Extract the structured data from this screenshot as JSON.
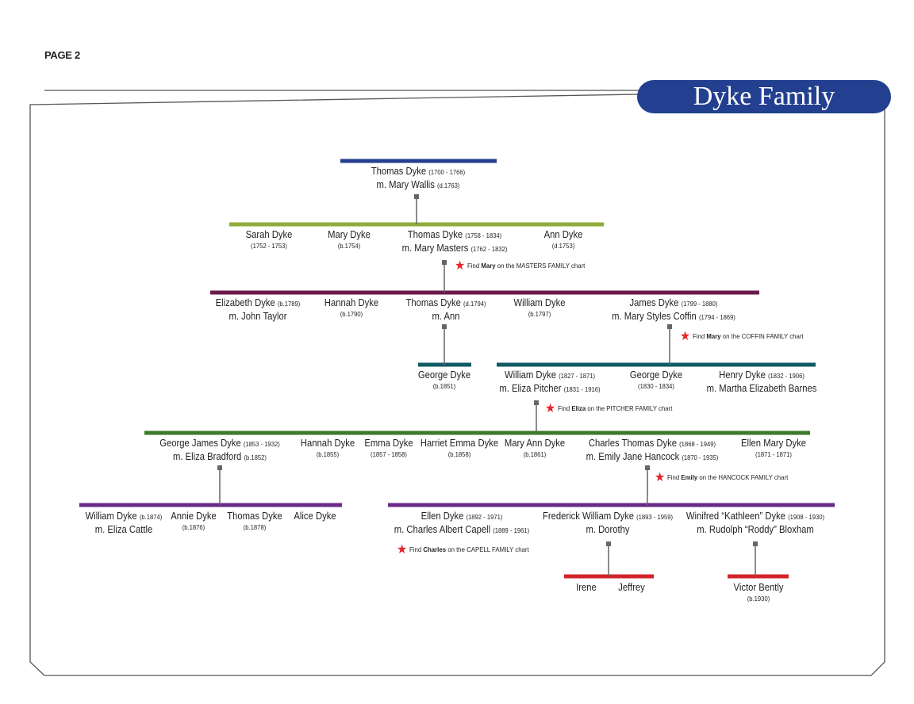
{
  "page_label": "PAGE 2",
  "title": "Dyke Family",
  "colors": {
    "title_bg": "#233f8f",
    "gen0": "#233f8f",
    "gen1": "#8fac3a",
    "gen2": "#6b1b4b",
    "gen3": "#0f5a64",
    "gen4": "#3d7a2a",
    "gen5": "#6a2a86",
    "gen6": "#d2232a",
    "star": "#e8232a"
  },
  "g0": [
    {
      "name": "Thomas Dyke",
      "dates": "(1700 - 1766)",
      "spouse": "m. Mary Wallis",
      "spouse_dates": "(d.1763)"
    }
  ],
  "g1": [
    {
      "name": "Sarah Dyke",
      "sub": "(1752 - 1753)"
    },
    {
      "name": "Mary Dyke",
      "sub": "(b.1754)"
    },
    {
      "name": "Thomas Dyke",
      "dates": "(1758 - 1834)",
      "spouse": "m. Mary Masters",
      "spouse_dates": "(1762 - 1832)"
    },
    {
      "name": "Ann Dyke",
      "sub": "(d.1753)"
    }
  ],
  "g2": [
    {
      "name": "Elizabeth Dyke",
      "dates": "(b.1789)",
      "spouse": "m. John Taylor"
    },
    {
      "name": "Hannah Dyke",
      "sub": "(b.1790)"
    },
    {
      "name": "Thomas Dyke",
      "dates": "(d.1794)",
      "spouse": "m. Ann"
    },
    {
      "name": "William Dyke",
      "sub": "(b.1797)"
    },
    {
      "name": "James Dyke",
      "dates": "(1799 - 1880)",
      "spouse": "m. Mary Styles Coffin",
      "spouse_dates": "(1794 - 1869)"
    }
  ],
  "g3": [
    {
      "name": "George Dyke",
      "sub": "(b.1851)"
    },
    {
      "name": "William Dyke",
      "dates": "(1827 - 1871)",
      "spouse": "m. Eliza Pitcher",
      "spouse_dates": "(1831 - 1916)"
    },
    {
      "name": "George Dyke",
      "sub": "(1830 - 1834)"
    },
    {
      "name": "Henry Dyke",
      "dates": "(1832 - 1906)",
      "spouse": "m. Martha Elizabeth Barnes"
    }
  ],
  "g4": [
    {
      "name": "George James Dyke",
      "dates": "(1853 - 1932)",
      "spouse": "m. Eliza Bradford",
      "spouse_dates": "(b.1852)"
    },
    {
      "name": "Hannah Dyke",
      "sub": "(b.1855)"
    },
    {
      "name": "Emma Dyke",
      "sub": "(1857 - 1858)"
    },
    {
      "name": "Harriet Emma Dyke",
      "sub": "(b.1858)"
    },
    {
      "name": "Mary Ann Dyke",
      "sub": "(b.1861)"
    },
    {
      "name": "Charles Thomas Dyke",
      "dates": "(1868 - 1949)",
      "spouse": "m. Emily Jane Hancock",
      "spouse_dates": "(1870 - 1935)"
    },
    {
      "name": "Ellen Mary Dyke",
      "sub": "(1871 - 1871)"
    }
  ],
  "g5": [
    {
      "name": "William Dyke",
      "dates": "(b.1874)",
      "spouse": "m. Eliza Cattle"
    },
    {
      "name": "Annie Dyke",
      "sub": "(b.1876)"
    },
    {
      "name": "Thomas Dyke",
      "sub": "(b.1878)"
    },
    {
      "name": "Alice Dyke"
    },
    {
      "name": "Ellen Dyke",
      "dates": "(1892 - 1971)",
      "spouse": "m. Charles Albert Capell",
      "spouse_dates": "(1889 - 1961)"
    },
    {
      "name": "Frederick William Dyke",
      "dates": "(1893 - 1959)",
      "spouse": "m. Dorothy"
    },
    {
      "name": "Winifred “Kathleen” Dyke",
      "dates": "(1908 - 1930)",
      "spouse": "m. Rudolph “Roddy” Bloxham"
    }
  ],
  "g6": [
    {
      "name": "Irene"
    },
    {
      "name": "Jeffrey"
    },
    {
      "name": "Victor Bently",
      "sub": "(b.1930)"
    }
  ],
  "notes": [
    {
      "prefix": "Find",
      "who": "Mary",
      "suffix": "on the MASTERS FAMILY chart"
    },
    {
      "prefix": "Find",
      "who": "Mary",
      "suffix": "on the COFFIN FAMILY chart"
    },
    {
      "prefix": "Find",
      "who": "Eliza",
      "suffix": "on the PITCHER FAMILY chart"
    },
    {
      "prefix": "Find",
      "who": "Emily",
      "suffix": "on the HANCOCK FAMILY chart"
    },
    {
      "prefix": "Find",
      "who": "Charles",
      "suffix": "on the CAPELL FAMILY chart"
    }
  ]
}
